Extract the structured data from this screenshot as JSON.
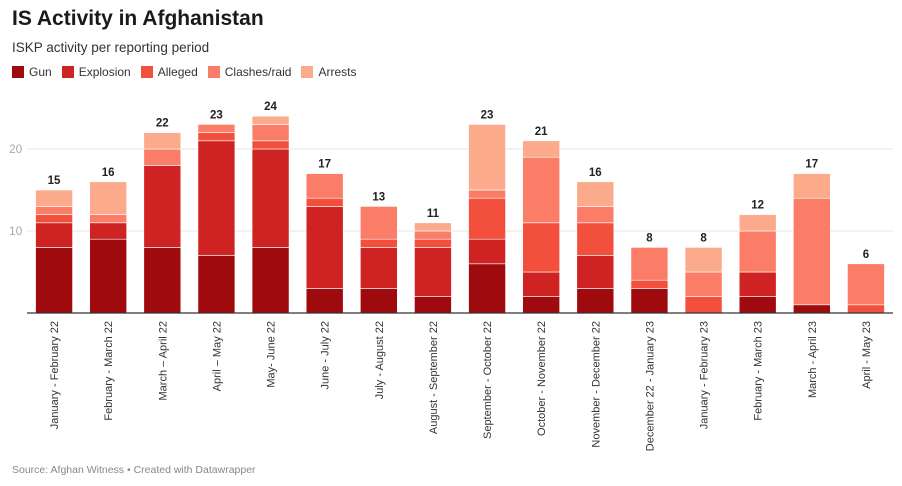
{
  "chart_data": {
    "type": "bar",
    "stacked": true,
    "title": "IS Activity in Afghanistan",
    "subtitle": "ISKP activity per reporting period",
    "ylim": [
      0,
      25
    ],
    "yticks": [
      10,
      20
    ],
    "grid": true,
    "legend_position": "top-left",
    "source": "Source: Afghan Witness • Created with Datawrapper",
    "categories": [
      "January - February 22",
      "February - March 22",
      "March – April 22",
      "April – May 22",
      "May- June 22",
      "June - July 22",
      "July - August 22",
      "August - September 22",
      "September - October 22",
      "October - November 22",
      "November - December 22",
      "December 22 - January 23",
      "January - February 23",
      "February - March 23",
      "March - April 23",
      "April - May 23"
    ],
    "totals": [
      15,
      16,
      22,
      23,
      24,
      17,
      13,
      11,
      23,
      21,
      16,
      8,
      8,
      12,
      17,
      6
    ],
    "series": [
      {
        "name": "Gun",
        "color": "#9e0a0e",
        "values": [
          8,
          9,
          8,
          7,
          8,
          3,
          3,
          2,
          6,
          2,
          3,
          3,
          0,
          2,
          1,
          0
        ]
      },
      {
        "name": "Explosion",
        "color": "#cf2222",
        "values": [
          3,
          2,
          10,
          14,
          12,
          10,
          5,
          6,
          3,
          3,
          4,
          0,
          0,
          3,
          0,
          0
        ]
      },
      {
        "name": "Alleged",
        "color": "#f2503d",
        "values": [
          1,
          0,
          0,
          1,
          1,
          1,
          1,
          1,
          5,
          6,
          4,
          1,
          2,
          0,
          0,
          1
        ]
      },
      {
        "name": "Clashes/raid",
        "color": "#fb7d67",
        "values": [
          1,
          1,
          2,
          1,
          2,
          3,
          4,
          1,
          1,
          8,
          2,
          4,
          3,
          5,
          13,
          5
        ]
      },
      {
        "name": "Arrests",
        "color": "#fcaa8c",
        "values": [
          2,
          4,
          2,
          0,
          1,
          0,
          0,
          1,
          8,
          2,
          3,
          0,
          3,
          2,
          3,
          0
        ]
      }
    ]
  }
}
